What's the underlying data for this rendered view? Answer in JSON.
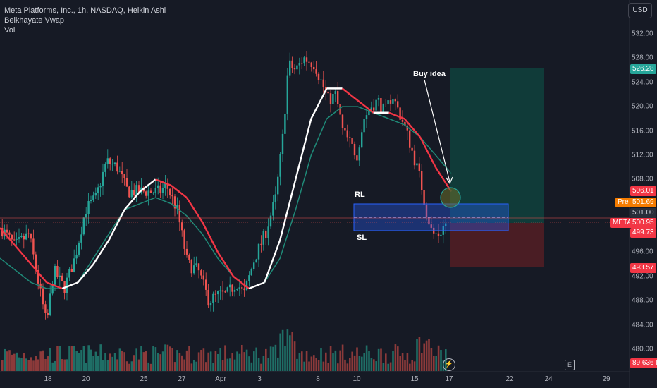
{
  "legend": {
    "symbol_line": "Meta Platforms, Inc., 1h, NASDAQ, Heikin Ashi",
    "indicator": "Belkhayate Vwap",
    "volume": "Vol"
  },
  "currency_button": "USD",
  "annotations": {
    "buy_idea": "Buy idea",
    "rl": "RL",
    "sl": "SL"
  },
  "x_axis_labels": [
    "18",
    "20",
    "25",
    "27",
    "Apr",
    "3",
    "8",
    "10",
    "15",
    "17",
    "22",
    "24",
    "29"
  ],
  "y_axis_labels": [
    "532.00",
    "528.00",
    "524.00",
    "520.00",
    "516.00",
    "512.00",
    "508.00",
    "496.00",
    "492.00",
    "488.00",
    "484.00",
    "480.00"
  ],
  "price_tags": {
    "target": "526.28",
    "resistance": "506.01",
    "pre_label": "Pre",
    "pre_value": "501.69",
    "level": "501.00",
    "symbol_label": "META",
    "last_price": "500.95",
    "support": "499.73",
    "stop": "493.57",
    "volume_value": "89.636 K"
  },
  "icons": {
    "flash": "lightning-icon",
    "earnings": "earnings-e-icon"
  },
  "earnings_label": "E",
  "colors": {
    "background": "#161a25",
    "up": "#26a69a",
    "down": "#ef5350",
    "vwap_down": "#f23645",
    "vwap_up": "#ffffff",
    "ma": "#1f8a78",
    "zone": "#2962ff",
    "target_zone": "#0e4a42",
    "stop_zone": "#5c1f24"
  },
  "chart_data": {
    "type": "candlestick",
    "title": "Meta Platforms, Inc., 1h, NASDAQ, Heikin Ashi",
    "y_range": [
      478,
      535
    ],
    "indicator": "Belkhayate Vwap",
    "series": [
      {
        "name": "Belkhayate Vwap",
        "values": [
          500,
          497,
          494,
          491,
          490,
          491,
          494,
          498,
          503,
          506,
          508,
          507,
          505,
          501,
          496,
          492,
          490,
          491,
          498,
          508,
          518,
          523,
          523,
          521,
          519,
          519,
          518,
          515,
          510,
          506
        ]
      },
      {
        "name": "MA",
        "values": [
          495,
          493,
          491,
          490,
          490,
          491,
          495,
          499,
          503,
          504,
          505,
          504,
          502,
          499,
          495,
          492,
          490,
          491,
          495,
          503,
          512,
          518,
          520,
          520,
          519,
          518,
          517,
          515,
          512,
          509
        ]
      }
    ],
    "long_position": {
      "entry": 501.0,
      "target": 526.28,
      "stop": 493.57
    },
    "zone": {
      "upper": 503.2,
      "lower": 499.73
    }
  }
}
